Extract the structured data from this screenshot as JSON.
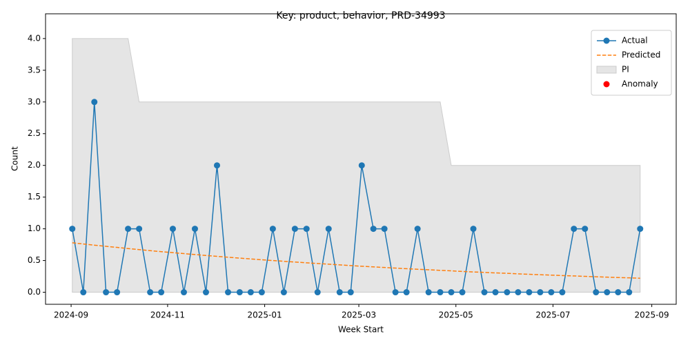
{
  "chart_data": {
    "type": "line",
    "title": "Key: product, behavior, PRD-34993",
    "xlabel": "Week Start",
    "ylabel": "Count",
    "x": [
      2024.669,
      2024.688,
      2024.707,
      2024.727,
      2024.746,
      2024.765,
      2024.784,
      2024.803,
      2024.822,
      2024.842,
      2024.861,
      2024.88,
      2024.899,
      2024.918,
      2024.937,
      2024.957,
      2024.976,
      2024.995,
      2025.014,
      2025.033,
      2025.052,
      2025.072,
      2025.091,
      2025.11,
      2025.129,
      2025.148,
      2025.167,
      2025.187,
      2025.206,
      2025.225,
      2025.244,
      2025.263,
      2025.282,
      2025.302,
      2025.321,
      2025.34,
      2025.359,
      2025.378,
      2025.397,
      2025.417,
      2025.436,
      2025.455,
      2025.474,
      2025.493,
      2025.512,
      2025.532,
      2025.551,
      2025.57,
      2025.589,
      2025.608,
      2025.627,
      2025.646
    ],
    "xlim": [
      2024.623,
      2025.708
    ],
    "xticks": [
      {
        "value": 2024.667,
        "label": "2024-09"
      },
      {
        "value": 2024.833,
        "label": "2024-11"
      },
      {
        "value": 2025.0,
        "label": "2025-01"
      },
      {
        "value": 2025.162,
        "label": "2025-03"
      },
      {
        "value": 2025.329,
        "label": "2025-05"
      },
      {
        "value": 2025.496,
        "label": "2025-07"
      },
      {
        "value": 2025.666,
        "label": "2025-09"
      }
    ],
    "ylim": [
      -0.19,
      4.39
    ],
    "yticks": [
      {
        "value": 0,
        "label": "0.0"
      },
      {
        "value": 0.5,
        "label": "0.5"
      },
      {
        "value": 1,
        "label": "1.0"
      },
      {
        "value": 1.5,
        "label": "1.5"
      },
      {
        "value": 2,
        "label": "2.0"
      },
      {
        "value": 2.5,
        "label": "2.5"
      },
      {
        "value": 3,
        "label": "3.0"
      },
      {
        "value": 3.5,
        "label": "3.5"
      },
      {
        "value": 4,
        "label": "4.0"
      }
    ],
    "legend": "upper right",
    "series": [
      {
        "name": "Actual",
        "color": "#1f77b4",
        "marker": "circle",
        "linestyle": "solid",
        "values": [
          1,
          0,
          3,
          0,
          0,
          1,
          1,
          0,
          0,
          1,
          0,
          1,
          0,
          2,
          0,
          0,
          0,
          0,
          1,
          0,
          1,
          1,
          0,
          1,
          0,
          0,
          2,
          1,
          1,
          0,
          0,
          1,
          0,
          0,
          0,
          0,
          1,
          0,
          0,
          0,
          0,
          0,
          0,
          0,
          0,
          1,
          1,
          0,
          0,
          0,
          0,
          1
        ]
      },
      {
        "name": "Predicted",
        "color": "#ff7f0e",
        "marker": "none",
        "linestyle": "dashed",
        "values": [
          0.78,
          0.761,
          0.742,
          0.724,
          0.707,
          0.689,
          0.672,
          0.656,
          0.64,
          0.624,
          0.609,
          0.594,
          0.58,
          0.566,
          0.552,
          0.538,
          0.525,
          0.512,
          0.5,
          0.488,
          0.476,
          0.464,
          0.453,
          0.442,
          0.431,
          0.42,
          0.41,
          0.4,
          0.39,
          0.381,
          0.371,
          0.362,
          0.354,
          0.345,
          0.337,
          0.328,
          0.32,
          0.313,
          0.305,
          0.298,
          0.29,
          0.283,
          0.276,
          0.27,
          0.263,
          0.257,
          0.25,
          0.244,
          0.238,
          0.232,
          0.227,
          0.221
        ]
      },
      {
        "name": "Anomaly",
        "color": "#ff0000",
        "marker": "circle",
        "linestyle": "none",
        "values": [
          null,
          null,
          null,
          null,
          null,
          null,
          null,
          null,
          null,
          null,
          null,
          null,
          null,
          null,
          null,
          null,
          null,
          null,
          null,
          null,
          null,
          null,
          null,
          null,
          null,
          null,
          null,
          null,
          null,
          null,
          null,
          null,
          null,
          null,
          null,
          null,
          null,
          null,
          null,
          null,
          null,
          null,
          null,
          null,
          null,
          null,
          null,
          null,
          null,
          null,
          null,
          null
        ]
      }
    ],
    "interval": {
      "name": "PI",
      "color": "#e5e5e5",
      "lower": [
        0,
        0,
        0,
        0,
        0,
        0,
        0,
        0,
        0,
        0,
        0,
        0,
        0,
        0,
        0,
        0,
        0,
        0,
        0,
        0,
        0,
        0,
        0,
        0,
        0,
        0,
        0,
        0,
        0,
        0,
        0,
        0,
        0,
        0,
        0,
        0,
        0,
        0,
        0,
        0,
        0,
        0,
        0,
        0,
        0,
        0,
        0,
        0,
        0,
        0,
        0,
        0
      ],
      "upper": [
        4,
        4,
        4,
        4,
        4,
        4,
        3,
        3,
        3,
        3,
        3,
        3,
        3,
        3,
        3,
        3,
        3,
        3,
        3,
        3,
        3,
        3,
        3,
        3,
        3,
        3,
        3,
        3,
        3,
        3,
        3,
        3,
        3,
        3,
        2,
        2,
        2,
        2,
        2,
        2,
        2,
        2,
        2,
        2,
        2,
        2,
        2,
        2,
        2,
        2,
        2,
        2
      ]
    }
  }
}
